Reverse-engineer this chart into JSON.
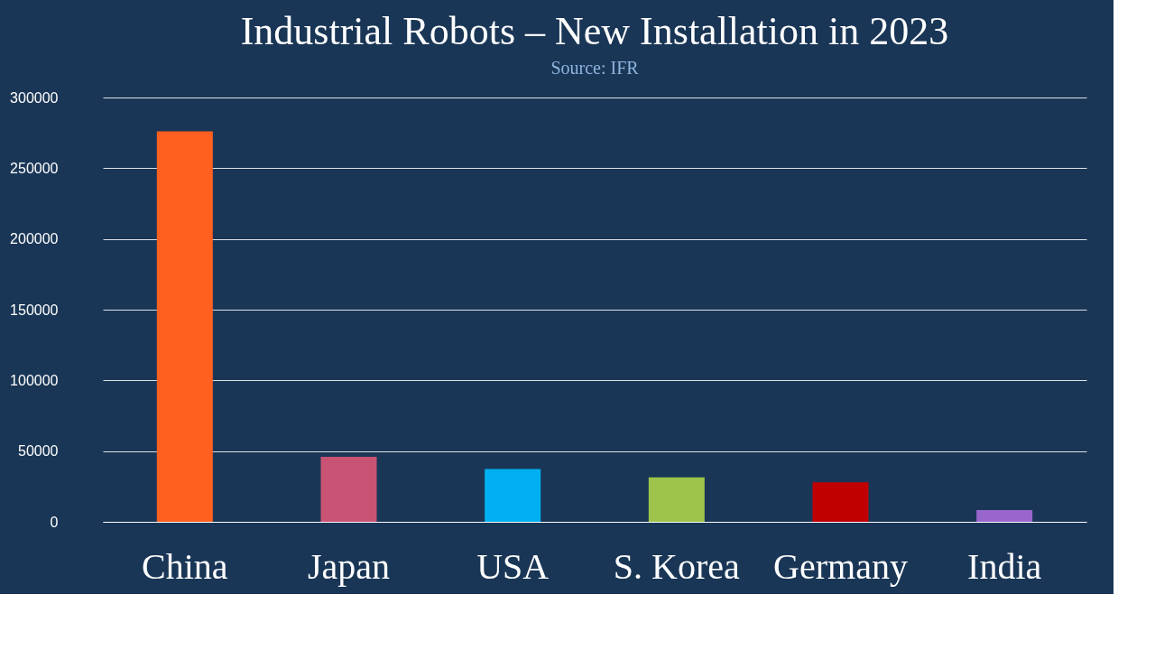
{
  "chart_data": {
    "type": "bar",
    "title": "Industrial Robots – New Installation in 2023",
    "subtitle": "Source: IFR",
    "categories": [
      "China",
      "Japan",
      "USA",
      "S. Korea",
      "Germany",
      "India"
    ],
    "values": [
      276000,
      46000,
      37400,
      31500,
      28000,
      8300
    ],
    "colors": [
      "#ff5f1f",
      "#c95375",
      "#00b0f0",
      "#9dc34a",
      "#c00000",
      "#9966cc"
    ],
    "ylim": [
      0,
      300000
    ],
    "yticks": [
      0,
      50000,
      100000,
      150000,
      200000,
      250000,
      300000
    ],
    "grid": "y"
  }
}
